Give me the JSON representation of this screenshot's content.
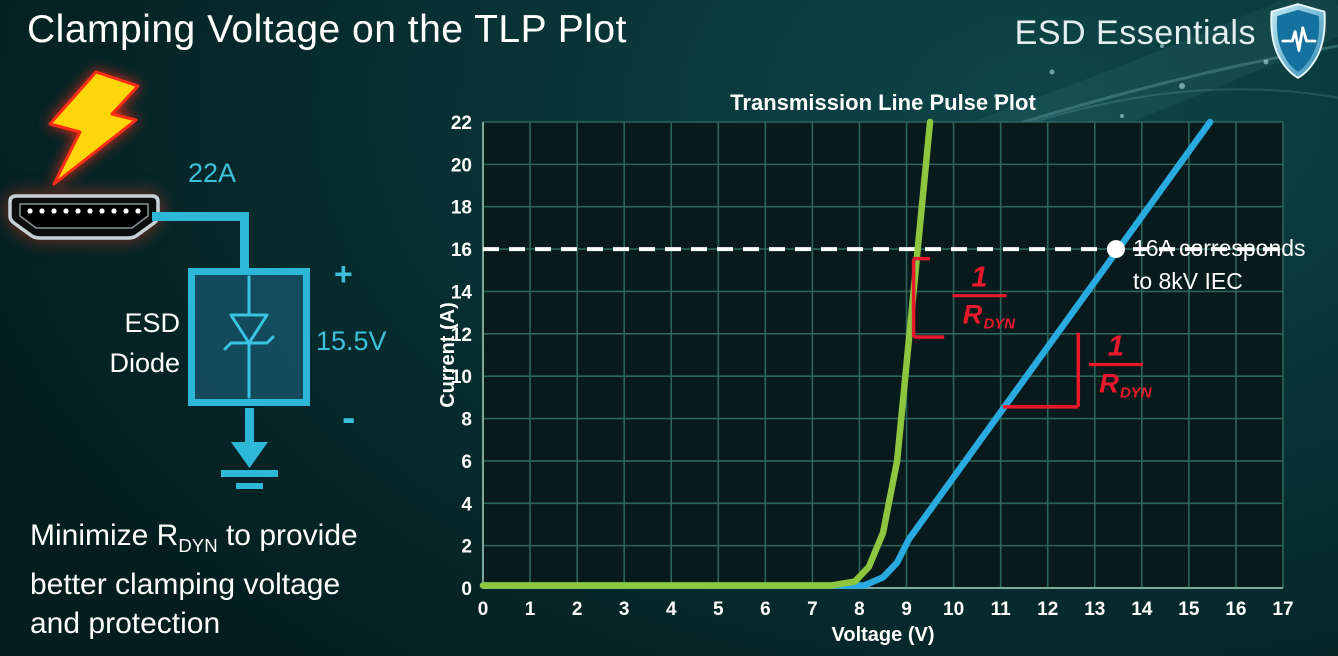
{
  "slide": {
    "title": "Clamping Voltage on the TLP Plot",
    "brand": "ESD Essentials"
  },
  "circuit": {
    "surge_current": "22A",
    "device_line1": "ESD",
    "device_line2": "Diode",
    "plus_sign": "+",
    "clamp_voltage": "15.5V",
    "minus_sign": "-"
  },
  "note": {
    "line1_prefix": "Minimize R",
    "line1_sub": "DYN",
    "line1_suffix": " to provide",
    "line2": "better clamping voltage",
    "line3": "and protection"
  },
  "chart_data": {
    "type": "line",
    "title": "Transmission Line Pulse Plot",
    "xlabel": "Voltage (V)",
    "ylabel": "Current (A)",
    "xlim": [
      0,
      17
    ],
    "ylim": [
      0,
      22
    ],
    "x_ticks": [
      0,
      1,
      2,
      3,
      4,
      5,
      6,
      7,
      8,
      9,
      10,
      11,
      12,
      13,
      14,
      15,
      16,
      17
    ],
    "y_ticks": [
      0,
      2,
      4,
      6,
      8,
      10,
      12,
      14,
      16,
      18,
      20,
      22
    ],
    "grid": true,
    "legend": "none",
    "colors": {
      "green": "#8dc63f",
      "blue": "#29aae1",
      "red": "#e8192c",
      "white": "#ffffff"
    },
    "series": [
      {
        "name": "blue-curve-higher-rdyn",
        "color": "#29aae1",
        "points": [
          [
            0,
            0.12
          ],
          [
            8.1,
            0.12
          ],
          [
            8.5,
            0.5
          ],
          [
            8.8,
            1.2
          ],
          [
            9.05,
            2.3
          ],
          [
            15.45,
            22
          ]
        ]
      },
      {
        "name": "green-curve-low-rdyn",
        "color": "#8dc63f",
        "points": [
          [
            0,
            0.12
          ],
          [
            7.4,
            0.12
          ],
          [
            7.9,
            0.3
          ],
          [
            8.2,
            1.0
          ],
          [
            8.5,
            2.6
          ],
          [
            8.8,
            6.0
          ],
          [
            9.5,
            22
          ]
        ]
      }
    ],
    "reference_line": {
      "y": 16,
      "style": "dashed",
      "color": "#ffffff"
    },
    "marker": {
      "x": 13.45,
      "y": 16,
      "color": "#ffffff"
    },
    "marker_label": {
      "line1": "16A corresponds",
      "line2": "to 8kV IEC"
    },
    "slope_annotations": [
      {
        "numerator": "1",
        "denominator_main": "R",
        "denominator_sub": "DYN",
        "color": "#e8192c",
        "lines": [
          [
            9.15,
            15.55,
            9.5,
            15.55
          ],
          [
            9.15,
            15.55,
            9.15,
            11.85
          ],
          [
            9.15,
            11.85,
            9.8,
            11.85
          ]
        ],
        "label_x": 10.55,
        "label_y": 13.8
      },
      {
        "numerator": "1",
        "denominator_main": "R",
        "denominator_sub": "DYN",
        "color": "#e8192c",
        "lines": [
          [
            11.05,
            8.55,
            12.65,
            8.55
          ],
          [
            12.65,
            8.55,
            12.65,
            12.05
          ]
        ],
        "label_x": 13.45,
        "label_y": 10.55
      }
    ]
  }
}
